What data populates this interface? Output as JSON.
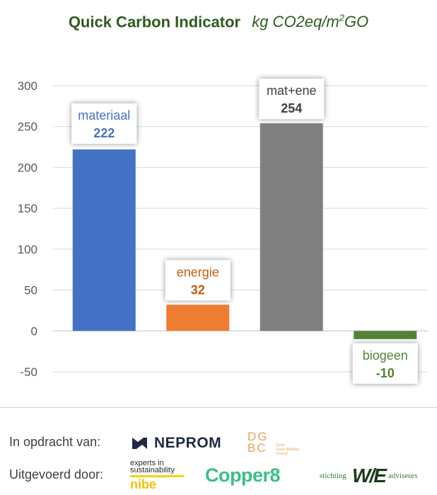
{
  "title": {
    "main": "Quick Carbon Indicator",
    "unit_prefix": "kg CO2eq/m",
    "unit_sup": "2",
    "unit_suffix": "GO"
  },
  "chart_data": {
    "type": "bar",
    "categories": [
      "materiaal",
      "energie",
      "mat+ene",
      "biogeen"
    ],
    "values": [
      222,
      32,
      254,
      -10
    ],
    "data_labels": [
      "222",
      "32",
      "254",
      "-10"
    ],
    "colors": [
      "#4472c4",
      "#ed7d31",
      "#808080",
      "#548235"
    ],
    "label_colors": [
      "#4472c4",
      "#c55a11",
      "#404040",
      "#548235"
    ],
    "ylim": [
      -50,
      300
    ],
    "yticks": [
      "-50",
      "0",
      "50",
      "100",
      "150",
      "200",
      "250",
      "300"
    ],
    "grid": true,
    "xlabel": "",
    "ylabel": ""
  },
  "footer": {
    "commissioned_label": "In opdracht van:",
    "executed_label": "Uitgevoerd door:",
    "logos": {
      "neprom": "NEPROM",
      "dgbc_line1": "DG",
      "dgbc_line2": "BC",
      "dgbc_sub1": "Dutch",
      "dgbc_sub2": "Green Building",
      "dgbc_sub3": "Council",
      "nibe_line1": "experts in",
      "nibe_line2": "sustainability",
      "nibe_name": "nibe",
      "copper": "Copper8",
      "we_prefix": "stichting",
      "we_mark": "W/E",
      "we_suffix": "adviseurs"
    }
  }
}
